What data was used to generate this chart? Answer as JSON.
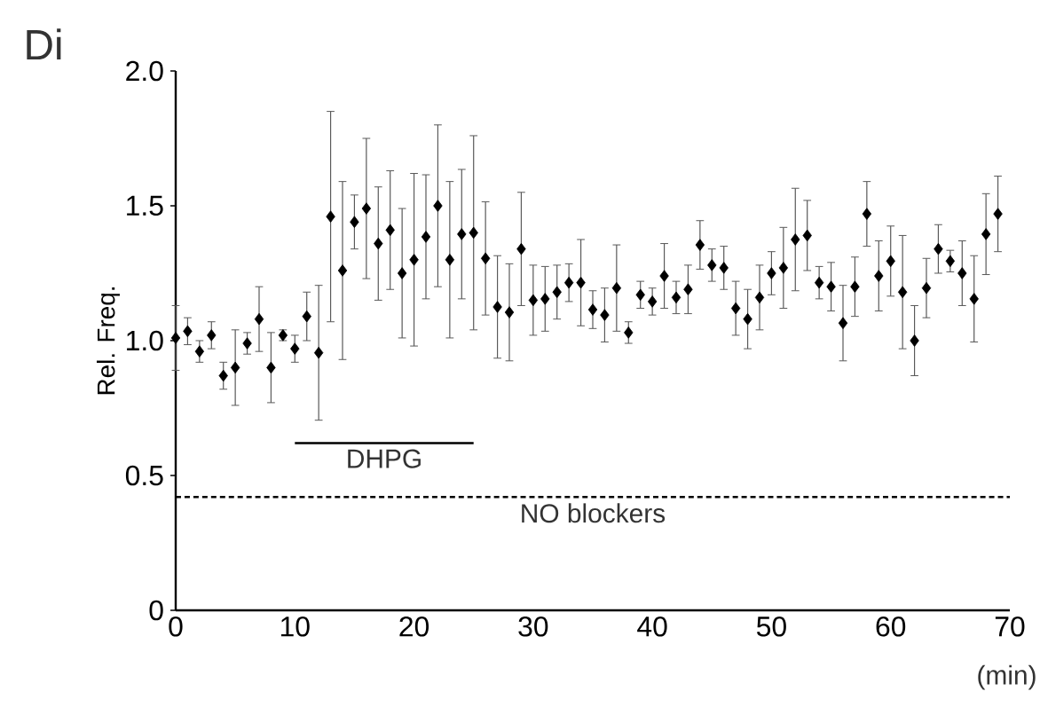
{
  "chart_data": {
    "type": "scatter",
    "title": "Di",
    "xlabel": "(min)",
    "ylabel": "Rel. Freq.",
    "x": [
      0,
      1,
      2,
      3,
      4,
      5,
      6,
      7,
      8,
      9,
      10,
      11,
      12,
      13,
      14,
      15,
      16,
      17,
      18,
      19,
      20,
      21,
      22,
      23,
      24,
      25,
      26,
      27,
      28,
      29,
      30,
      31,
      32,
      33,
      34,
      35,
      36,
      37,
      38,
      39,
      40,
      41,
      42,
      43,
      44,
      45,
      46,
      47,
      48,
      49,
      50,
      51,
      52,
      53,
      54,
      55,
      56,
      57,
      58,
      59,
      60,
      61,
      62,
      63,
      64,
      65,
      66,
      67,
      68,
      69
    ],
    "series": [
      {
        "color": "#000000",
        "values": [
          1.01,
          1.035,
          0.96,
          1.02,
          0.87,
          0.9,
          0.99,
          1.08,
          0.9,
          1.02,
          0.97,
          1.09,
          0.955,
          1.46,
          1.26,
          1.44,
          1.49,
          1.36,
          1.41,
          1.25,
          1.3,
          1.385,
          1.5,
          1.3,
          1.395,
          1.4,
          1.305,
          1.125,
          1.105,
          1.34,
          1.15,
          1.155,
          1.18,
          1.215,
          1.215,
          1.115,
          1.095,
          1.195,
          1.03,
          1.17,
          1.145,
          1.24,
          1.16,
          1.19,
          1.355,
          1.28,
          1.27,
          1.12,
          1.08,
          1.16,
          1.25,
          1.27,
          1.375,
          1.39,
          1.215,
          1.2,
          1.065,
          1.2,
          1.47,
          1.24,
          1.295,
          1.18,
          1.0,
          1.195,
          1.34,
          1.295,
          1.25,
          1.155,
          1.395,
          1.47
        ],
        "errors": [
          0.12,
          0.05,
          0.04,
          0.05,
          0.05,
          0.14,
          0.04,
          0.12,
          0.13,
          0.02,
          0.05,
          0.09,
          0.25,
          0.39,
          0.33,
          0.1,
          0.26,
          0.21,
          0.22,
          0.24,
          0.32,
          0.23,
          0.3,
          0.29,
          0.24,
          0.36,
          0.21,
          0.19,
          0.18,
          0.21,
          0.13,
          0.12,
          0.1,
          0.07,
          0.16,
          0.07,
          0.1,
          0.16,
          0.04,
          0.05,
          0.05,
          0.12,
          0.06,
          0.09,
          0.09,
          0.06,
          0.08,
          0.1,
          0.11,
          0.12,
          0.08,
          0.15,
          0.19,
          0.13,
          0.06,
          0.09,
          0.14,
          0.11,
          0.12,
          0.13,
          0.13,
          0.21,
          0.13,
          0.11,
          0.09,
          0.04,
          0.12,
          0.16,
          0.15,
          0.14
        ]
      },
      {
        "type": "line",
        "color": "#000000",
        "marker": "none",
        "x": [
          10,
          25
        ],
        "values": [
          0.62,
          0.62
        ]
      }
    ],
    "annotations": [
      {
        "text": "DHPG",
        "x": 17.5,
        "y": 0.62
      }
    ],
    "xlim": [
      0,
      70
    ],
    "xticks": [
      0,
      10,
      20,
      30,
      40,
      50,
      60,
      70
    ],
    "ylim": [
      0,
      2.0
    ],
    "yticks": [
      0,
      {
        "value": 0.5,
        "label": "0.5"
      },
      {
        "value": 1.0,
        "label": "1.0"
      },
      {
        "value": 1.5,
        "label": "1.5"
      },
      {
        "value": 2.0,
        "label": "2.0"
      }
    ],
    "marker": "diamond",
    "grid": false,
    "ref_lines": [
      {
        "axis": "y",
        "value": 0.42,
        "label": "NO blockers",
        "line_style": "dashed"
      }
    ]
  }
}
